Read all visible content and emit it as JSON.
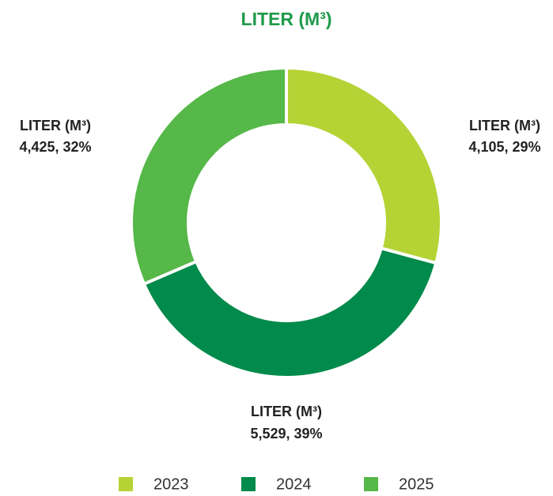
{
  "chart_data": {
    "type": "donut",
    "title": "LITER (M³)",
    "categories": [
      "2023",
      "2024",
      "2025"
    ],
    "series": [
      {
        "name": "LITER (M³)",
        "colors": [
          "#b5d334",
          "#008a4b",
          "#55b848"
        ],
        "values": [
          4105,
          5529,
          4425
        ],
        "value_labels": [
          "4,105, 29%",
          "5,529, 39%",
          "4,425, 32%"
        ]
      }
    ],
    "legend": "bottom"
  }
}
